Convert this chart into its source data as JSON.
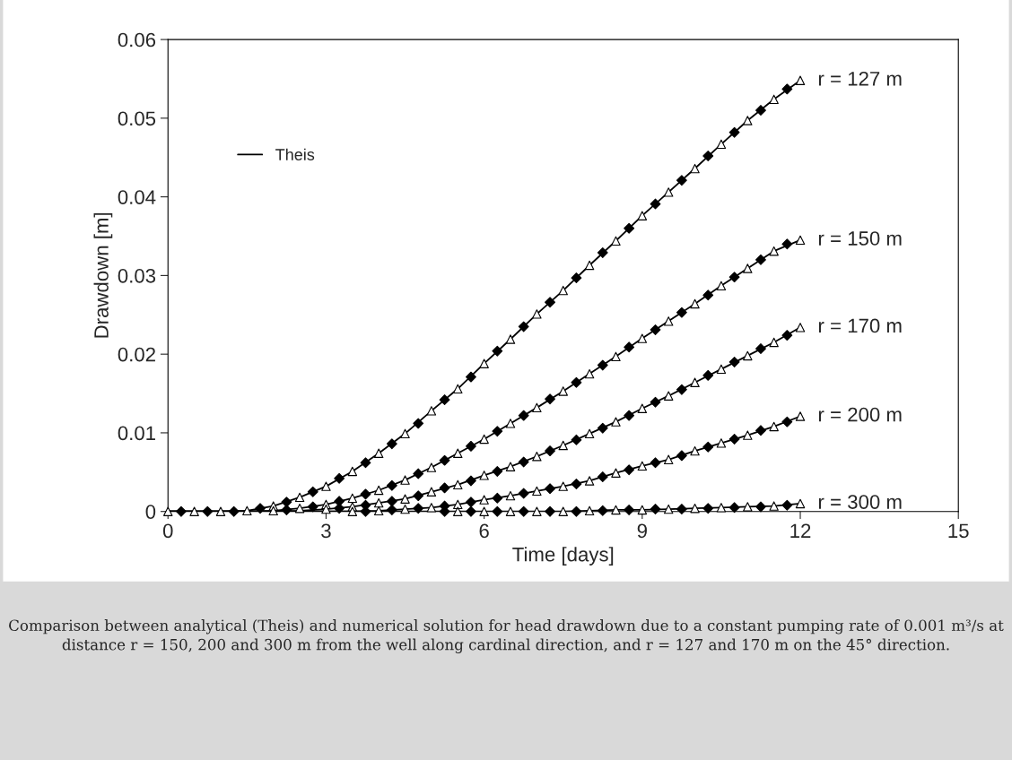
{
  "chart_data": {
    "type": "line",
    "xlabel": "Time [days]",
    "ylabel": "Drawdown [m]",
    "xlim": [
      0,
      15
    ],
    "xticks": [
      0,
      3,
      6,
      9,
      12,
      15
    ],
    "ylim": [
      0,
      0.06
    ],
    "yticks": [
      0,
      0.01,
      0.02,
      0.03,
      0.04,
      0.05,
      0.06
    ],
    "grid": false,
    "legend": "top left",
    "series": [
      {
        "name": "Theis",
        "color": "#000000",
        "marker": "none",
        "x": [
          0,
          0.5,
          1,
          1.5,
          2,
          2.5,
          3,
          3.5,
          4,
          4.5,
          5,
          5.5,
          6,
          6.5,
          7,
          7.5,
          8,
          8.5,
          9,
          9.5,
          10,
          10.5,
          11,
          11.5,
          12
        ],
        "values": [
          0,
          0,
          0,
          0.0001,
          0.0007,
          0.0018,
          0.0032,
          0.0051,
          0.0074,
          0.0099,
          0.0128,
          0.0156,
          0.0188,
          0.0219,
          0.0251,
          0.0281,
          0.0313,
          0.0344,
          0.0376,
          0.0406,
          0.0436,
          0.0467,
          0.0497,
          0.0524,
          0.0548
        ]
      },
      {
        "type": "scatter",
        "color": "#000000",
        "marker": "diamond",
        "x": [
          0.25,
          0.75,
          1.25,
          1.75,
          2.25,
          2.75,
          3.25,
          3.75,
          4.25,
          4.75,
          5.25,
          5.75,
          6.25,
          6.75,
          7.25,
          7.75,
          8.25,
          8.75,
          9.25,
          9.75,
          10.25,
          10.75,
          11.25,
          11.75
        ],
        "values": [
          0,
          0,
          0,
          0.0004,
          0.0012,
          0.0025,
          0.0042,
          0.0062,
          0.0086,
          0.0112,
          0.0142,
          0.0171,
          0.0204,
          0.0235,
          0.0266,
          0.0297,
          0.0329,
          0.036,
          0.0391,
          0.0421,
          0.0452,
          0.0482,
          0.051,
          0.0537
        ]
      },
      {
        "type": "scatter",
        "color": "#ffffff",
        "marker": "triangle",
        "x": [
          0,
          0.5,
          1,
          1.5,
          2,
          2.5,
          3,
          3.5,
          4,
          4.5,
          5,
          5.5,
          6,
          6.5,
          7,
          7.5,
          8,
          8.5,
          9,
          9.5,
          10,
          10.5,
          11,
          11.5,
          12
        ],
        "values": [
          0,
          0,
          0,
          0.0001,
          0.0007,
          0.0018,
          0.0032,
          0.0051,
          0.0074,
          0.0099,
          0.0128,
          0.0156,
          0.0188,
          0.0219,
          0.0251,
          0.0281,
          0.0313,
          0.0344,
          0.0376,
          0.0406,
          0.0436,
          0.0467,
          0.0497,
          0.0524,
          0.0548
        ]
      },
      {
        "color": "#000000",
        "marker": "none",
        "x": [
          0,
          0.5,
          1,
          1.5,
          2,
          2.5,
          3,
          3.5,
          4,
          4.5,
          5,
          5.5,
          6,
          6.5,
          7,
          7.5,
          8,
          8.5,
          9,
          9.5,
          10,
          10.5,
          11,
          11.5,
          12
        ],
        "values": [
          0,
          0,
          0,
          0,
          0.0001,
          0.0004,
          0.0009,
          0.0017,
          0.0027,
          0.004,
          0.0056,
          0.0074,
          0.0092,
          0.0112,
          0.0132,
          0.0153,
          0.0175,
          0.0197,
          0.022,
          0.0242,
          0.0264,
          0.0287,
          0.0309,
          0.0331,
          0.0345
        ]
      },
      {
        "type": "scatter",
        "color": "#000000",
        "marker": "diamond",
        "x": [
          2.25,
          2.75,
          3.25,
          3.75,
          4.25,
          4.75,
          5.25,
          5.75,
          6.25,
          6.75,
          7.25,
          7.75,
          8.25,
          8.75,
          9.25,
          9.75,
          10.25,
          10.75,
          11.25,
          11.75
        ],
        "values": [
          0.0002,
          0.0006,
          0.0013,
          0.0022,
          0.0033,
          0.0048,
          0.0065,
          0.0083,
          0.0102,
          0.0122,
          0.0143,
          0.0164,
          0.0186,
          0.0209,
          0.0231,
          0.0253,
          0.0275,
          0.0298,
          0.032,
          0.034
        ]
      },
      {
        "type": "scatter",
        "color": "#ffffff",
        "marker": "triangle",
        "x": [
          2,
          2.5,
          3,
          3.5,
          4,
          4.5,
          5,
          5.5,
          6,
          6.5,
          7,
          7.5,
          8,
          8.5,
          9,
          9.5,
          10,
          10.5,
          11,
          11.5,
          12
        ],
        "values": [
          0.0001,
          0.0004,
          0.0009,
          0.0017,
          0.0027,
          0.004,
          0.0056,
          0.0074,
          0.0092,
          0.0112,
          0.0132,
          0.0153,
          0.0175,
          0.0197,
          0.022,
          0.0242,
          0.0264,
          0.0287,
          0.0309,
          0.0331,
          0.0345
        ]
      },
      {
        "color": "#000000",
        "marker": "none",
        "x": [
          0,
          0.5,
          1,
          1.5,
          2,
          2.5,
          3,
          3.5,
          4,
          4.5,
          5,
          5.5,
          6,
          6.5,
          7,
          7.5,
          8,
          8.5,
          9,
          9.5,
          10,
          10.5,
          11,
          11.5,
          12
        ],
        "values": [
          0,
          0,
          0,
          0,
          0,
          0.0001,
          0.0003,
          0.0006,
          0.0011,
          0.0016,
          0.0025,
          0.0034,
          0.0046,
          0.0057,
          0.007,
          0.0084,
          0.0099,
          0.0114,
          0.0131,
          0.0147,
          0.0164,
          0.0181,
          0.0198,
          0.0215,
          0.0234
        ]
      },
      {
        "type": "scatter",
        "color": "#000000",
        "marker": "diamond",
        "x": [
          3.25,
          3.75,
          4.25,
          4.75,
          5.25,
          5.75,
          6.25,
          6.75,
          7.25,
          7.75,
          8.25,
          8.75,
          9.25,
          9.75,
          10.25,
          10.75,
          11.25,
          11.75
        ],
        "values": [
          0.0004,
          0.0008,
          0.0013,
          0.002,
          0.003,
          0.0039,
          0.0051,
          0.0063,
          0.0077,
          0.0091,
          0.0106,
          0.0122,
          0.0139,
          0.0155,
          0.0173,
          0.019,
          0.0207,
          0.0224
        ]
      },
      {
        "type": "scatter",
        "color": "#ffffff",
        "marker": "triangle",
        "x": [
          3,
          3.5,
          4,
          4.5,
          5,
          5.5,
          6,
          6.5,
          7,
          7.5,
          8,
          8.5,
          9,
          9.5,
          10,
          10.5,
          11,
          11.5,
          12
        ],
        "values": [
          0.0003,
          0.0006,
          0.0011,
          0.0016,
          0.0025,
          0.0034,
          0.0046,
          0.0057,
          0.007,
          0.0084,
          0.0099,
          0.0114,
          0.0131,
          0.0147,
          0.0164,
          0.0181,
          0.0198,
          0.0215,
          0.0234
        ]
      },
      {
        "color": "#000000",
        "marker": "none",
        "x": [
          0,
          0.5,
          1,
          1.5,
          2,
          2.5,
          3,
          3.5,
          4,
          4.5,
          5,
          5.5,
          6,
          6.5,
          7,
          7.5,
          8,
          8.5,
          9,
          9.5,
          10,
          10.5,
          11,
          11.5,
          12
        ],
        "values": [
          0,
          0,
          0,
          0,
          0,
          0,
          0,
          0,
          0.0001,
          0.0003,
          0.0005,
          0.0009,
          0.0015,
          0.002,
          0.0026,
          0.0032,
          0.0039,
          0.0049,
          0.0058,
          0.0066,
          0.0077,
          0.0087,
          0.0097,
          0.0108,
          0.0121
        ]
      },
      {
        "type": "scatter",
        "color": "#000000",
        "marker": "diamond",
        "x": [
          3.75,
          4.25,
          4.75,
          5.25,
          5.75,
          6.25,
          6.75,
          7.25,
          7.75,
          8.25,
          8.75,
          9.25,
          9.75,
          10.25,
          10.75,
          11.25,
          11.75
        ],
        "values": [
          0,
          0.0002,
          0.0004,
          0.0007,
          0.0012,
          0.0017,
          0.0023,
          0.0029,
          0.0035,
          0.0044,
          0.0053,
          0.0062,
          0.0071,
          0.0082,
          0.0092,
          0.0103,
          0.0114
        ]
      },
      {
        "type": "scatter",
        "color": "#ffffff",
        "marker": "triangle",
        "x": [
          3.5,
          4,
          4.5,
          5,
          5.5,
          6,
          6.5,
          7,
          7.5,
          8,
          8.5,
          9,
          9.5,
          10,
          10.5,
          11,
          11.5,
          12
        ],
        "values": [
          0,
          0.0001,
          0.0003,
          0.0005,
          0.0009,
          0.0015,
          0.002,
          0.0026,
          0.0032,
          0.0039,
          0.0049,
          0.0058,
          0.0066,
          0.0077,
          0.0087,
          0.0097,
          0.0108,
          0.0121
        ]
      },
      {
        "color": "#000000",
        "marker": "none",
        "x": [
          0,
          0.5,
          1,
          1.5,
          2,
          2.5,
          3,
          3.5,
          4,
          4.5,
          5,
          5.5,
          6,
          6.5,
          7,
          7.5,
          8,
          8.5,
          9,
          9.5,
          10,
          10.5,
          11,
          11.5,
          12
        ],
        "values": [
          0,
          0,
          0,
          0,
          0,
          0,
          0,
          0,
          0,
          0,
          0,
          0,
          0,
          0,
          0,
          0,
          0.0001,
          0.0002,
          0.0002,
          0.0003,
          0.0004,
          0.0005,
          0.0006,
          0.0007,
          0.001
        ]
      },
      {
        "type": "scatter",
        "color": "#000000",
        "marker": "diamond",
        "x": [
          5.25,
          5.75,
          6.25,
          6.75,
          7.25,
          7.75,
          8.25,
          8.75,
          9.25,
          9.75,
          10.25,
          10.75,
          11.25,
          11.75
        ],
        "values": [
          0,
          0,
          0,
          0,
          0,
          0,
          0.0001,
          0.0002,
          0.0003,
          0.0003,
          0.0004,
          0.0005,
          0.0006,
          0.0008
        ]
      },
      {
        "type": "scatter",
        "color": "#ffffff",
        "marker": "triangle",
        "x": [
          5.5,
          6,
          6.5,
          7,
          7.5,
          8,
          8.5,
          9,
          9.5,
          10,
          10.5,
          11,
          11.5,
          12
        ],
        "values": [
          0,
          0,
          0,
          0,
          0,
          0.0001,
          0.0002,
          0.0002,
          0.0003,
          0.0004,
          0.0005,
          0.0006,
          0.0007,
          0.001
        ]
      }
    ],
    "annotations": [
      "r = 127 m",
      "r = 150 m",
      "r = 170 m",
      "r = 200 m",
      "r = 300 m",
      "Comparison between analytical (Theis) and numerical solution for head drawdown due to a constant pumping rate of 0.001 m³/s at distance r = 150, 200 and 300 m from the well along cardinal direction, and r = 127 and 170 m on the 45° direction."
    ]
  }
}
